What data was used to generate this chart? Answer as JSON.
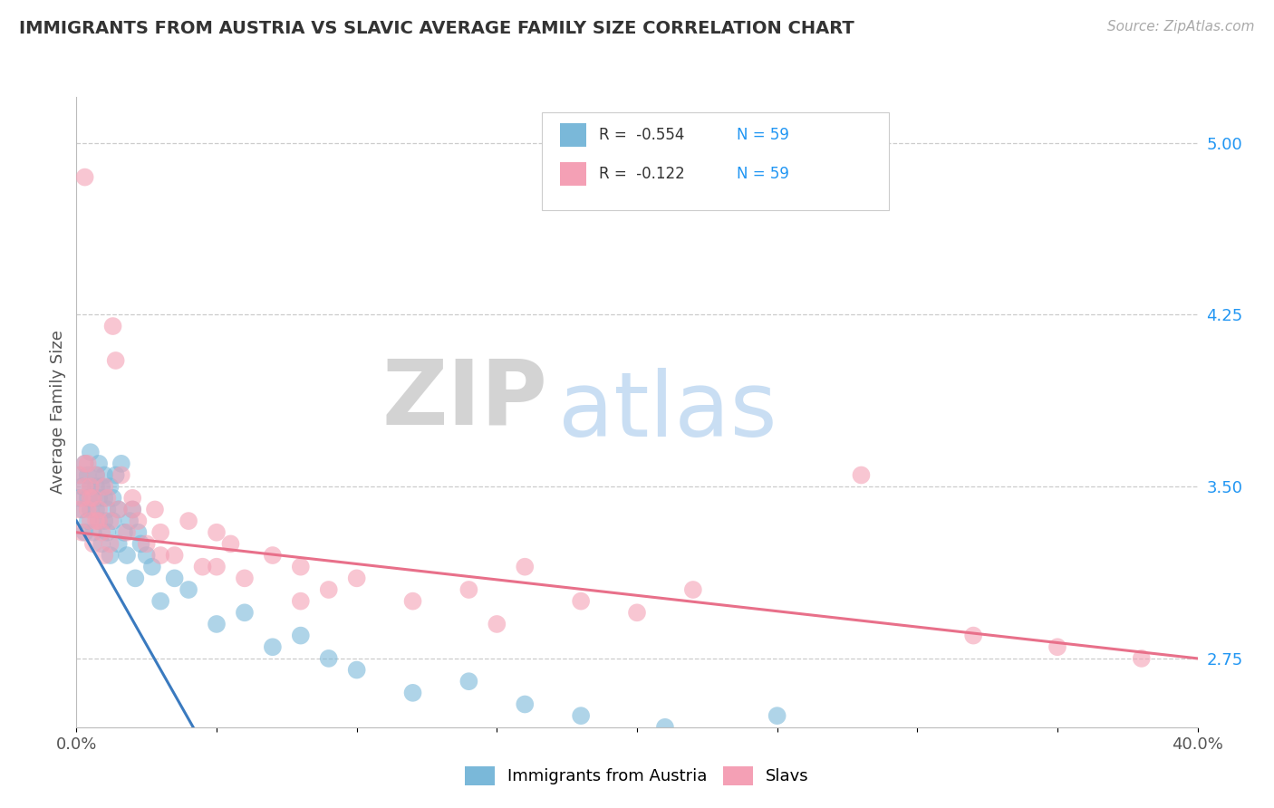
{
  "title": "IMMIGRANTS FROM AUSTRIA VS SLAVIC AVERAGE FAMILY SIZE CORRELATION CHART",
  "source": "Source: ZipAtlas.com",
  "ylabel": "Average Family Size",
  "xlim": [
    0.0,
    0.4
  ],
  "ylim": [
    2.45,
    5.2
  ],
  "yticks": [
    2.75,
    3.5,
    4.25,
    5.0
  ],
  "xticks": [
    0.0,
    0.05,
    0.1,
    0.15,
    0.2,
    0.25,
    0.3,
    0.35,
    0.4
  ],
  "xticklabels_show": [
    "0.0%",
    "",
    "",
    "",
    "",
    "",
    "",
    "",
    "40.0%"
  ],
  "legend_r1": "R =  -0.554",
  "legend_n1": "N = 59",
  "legend_r2": "R =  -0.122",
  "legend_n2": "N = 59",
  "color_blue": "#7ab8d9",
  "color_pink": "#f4a0b5",
  "line_blue": "#3a7abf",
  "line_pink": "#e8708a",
  "legend_label1": "Immigrants from Austria",
  "legend_label2": "Slavs",
  "watermark_zip": "ZIP",
  "watermark_atlas": "atlas",
  "austria_x": [
    0.001,
    0.001,
    0.002,
    0.002,
    0.003,
    0.003,
    0.004,
    0.004,
    0.004,
    0.005,
    0.005,
    0.005,
    0.006,
    0.006,
    0.007,
    0.007,
    0.007,
    0.008,
    0.008,
    0.008,
    0.009,
    0.009,
    0.01,
    0.01,
    0.01,
    0.011,
    0.011,
    0.012,
    0.012,
    0.013,
    0.013,
    0.014,
    0.015,
    0.015,
    0.016,
    0.017,
    0.018,
    0.019,
    0.02,
    0.021,
    0.022,
    0.023,
    0.025,
    0.027,
    0.03,
    0.035,
    0.04,
    0.05,
    0.06,
    0.07,
    0.08,
    0.09,
    0.1,
    0.12,
    0.14,
    0.16,
    0.18,
    0.21,
    0.25
  ],
  "austria_y": [
    3.45,
    3.55,
    3.5,
    3.4,
    3.6,
    3.3,
    3.55,
    3.45,
    3.35,
    3.5,
    3.4,
    3.65,
    3.45,
    3.3,
    3.55,
    3.4,
    3.5,
    3.6,
    3.35,
    3.45,
    3.5,
    3.25,
    3.45,
    3.35,
    3.55,
    3.4,
    3.3,
    3.5,
    3.2,
    3.45,
    3.35,
    3.55,
    3.4,
    3.25,
    3.6,
    3.3,
    3.2,
    3.35,
    3.4,
    3.1,
    3.3,
    3.25,
    3.2,
    3.15,
    3.0,
    3.1,
    3.05,
    2.9,
    2.95,
    2.8,
    2.85,
    2.75,
    2.7,
    2.6,
    2.65,
    2.55,
    2.5,
    2.45,
    2.5
  ],
  "slavic_x": [
    0.001,
    0.001,
    0.002,
    0.002,
    0.003,
    0.003,
    0.004,
    0.004,
    0.005,
    0.005,
    0.006,
    0.006,
    0.007,
    0.007,
    0.008,
    0.009,
    0.01,
    0.01,
    0.011,
    0.012,
    0.013,
    0.014,
    0.015,
    0.016,
    0.018,
    0.02,
    0.022,
    0.025,
    0.028,
    0.03,
    0.035,
    0.04,
    0.045,
    0.05,
    0.055,
    0.06,
    0.07,
    0.08,
    0.09,
    0.1,
    0.12,
    0.14,
    0.16,
    0.18,
    0.2,
    0.22,
    0.28,
    0.32,
    0.35,
    0.38,
    0.003,
    0.005,
    0.008,
    0.012,
    0.02,
    0.03,
    0.05,
    0.08,
    0.15
  ],
  "slavic_y": [
    3.4,
    3.55,
    3.45,
    3.3,
    4.85,
    3.5,
    3.4,
    3.6,
    3.35,
    3.5,
    3.45,
    3.25,
    3.55,
    3.35,
    3.4,
    3.3,
    3.5,
    3.2,
    3.45,
    3.35,
    4.2,
    4.05,
    3.4,
    3.55,
    3.3,
    3.45,
    3.35,
    3.25,
    3.4,
    3.3,
    3.2,
    3.35,
    3.15,
    3.3,
    3.25,
    3.1,
    3.2,
    3.15,
    3.05,
    3.1,
    3.0,
    3.05,
    3.15,
    3.0,
    2.95,
    3.05,
    3.55,
    2.85,
    2.8,
    2.75,
    3.6,
    3.45,
    3.35,
    3.25,
    3.4,
    3.2,
    3.15,
    3.0,
    2.9
  ]
}
